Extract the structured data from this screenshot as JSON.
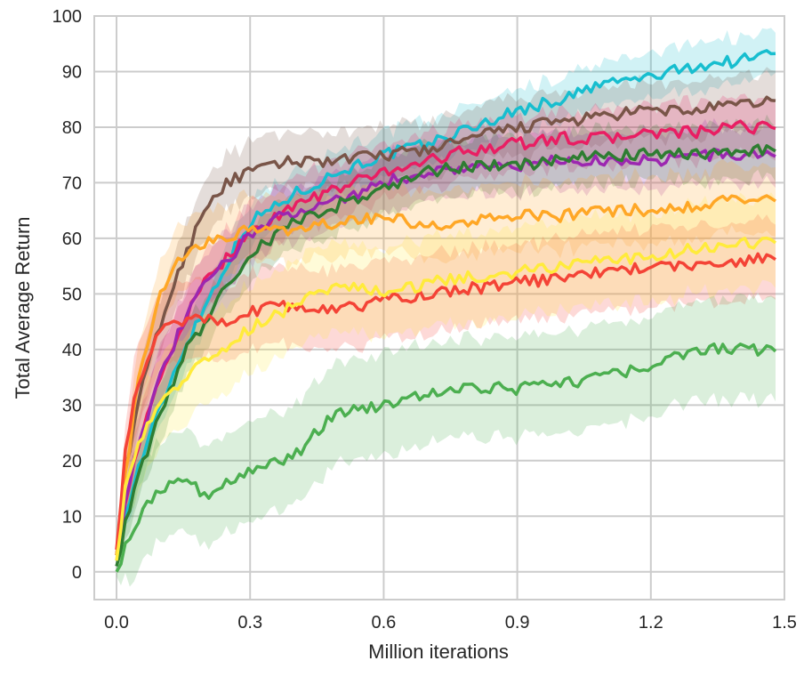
{
  "chart_data": {
    "type": "line",
    "title": "",
    "xlabel": "Million iterations",
    "ylabel": "Total Average Return",
    "xlim": [
      -0.05,
      1.5
    ],
    "ylim": [
      -5,
      100
    ],
    "xticks": [
      "0.0",
      "0.3",
      "0.6",
      "0.9",
      "1.2",
      "1.5"
    ],
    "xtick_values": [
      0.0,
      0.3,
      0.6,
      0.9,
      1.2,
      1.5
    ],
    "yticks": [
      "0",
      "10",
      "20",
      "30",
      "40",
      "50",
      "60",
      "70",
      "80",
      "90",
      "100"
    ],
    "ytick_values": [
      0,
      10,
      20,
      30,
      40,
      50,
      60,
      70,
      80,
      90,
      100
    ],
    "grid": true,
    "legend": "none",
    "x": [
      0.0,
      0.02,
      0.05,
      0.1,
      0.15,
      0.2,
      0.25,
      0.3,
      0.4,
      0.5,
      0.6,
      0.7,
      0.8,
      0.9,
      1.0,
      1.1,
      1.2,
      1.3,
      1.4,
      1.48
    ],
    "series": [
      {
        "color": "#17becf",
        "band": 4,
        "values": [
          2,
          10,
          19,
          30,
          40,
          48,
          56,
          63,
          68,
          72,
          75,
          77,
          80,
          83,
          85,
          88,
          89,
          91,
          92,
          93.5
        ]
      },
      {
        "color": "#795548",
        "band": 5,
        "values": [
          3,
          18,
          31,
          45,
          56,
          66,
          70,
          72,
          74,
          74,
          75,
          76,
          78,
          80,
          81,
          82,
          83,
          83,
          84,
          85
        ]
      },
      {
        "color": "#e91e63",
        "band": 5,
        "values": [
          4,
          13,
          23,
          35,
          45,
          52,
          57,
          61,
          66,
          69,
          72,
          74,
          76,
          77,
          78,
          78,
          79,
          79,
          80,
          80
        ]
      },
      {
        "color": "#9c27b0",
        "band": 5,
        "values": [
          3,
          13,
          24,
          35,
          45,
          52,
          56,
          61,
          65,
          67,
          70,
          72,
          73,
          73,
          74,
          74,
          74,
          75,
          75,
          75
        ]
      },
      {
        "color": "#2e7d32",
        "band": 5,
        "values": [
          1,
          9,
          17,
          29,
          39,
          45,
          52,
          57,
          63,
          66,
          69,
          72,
          73,
          73,
          74,
          75,
          75,
          75,
          76,
          76
        ]
      },
      {
        "color": "#ffa726",
        "band": 6,
        "values": [
          3,
          17,
          35,
          50,
          57,
          59,
          60,
          62,
          61,
          63,
          64,
          62,
          63,
          64,
          64,
          65,
          65,
          66,
          67,
          67
        ]
      },
      {
        "color": "#f44336",
        "band": 7,
        "values": [
          4,
          23,
          34,
          44,
          45,
          46,
          45,
          47,
          48,
          47,
          49,
          50,
          51,
          52,
          53,
          54,
          55,
          55,
          56,
          56.5
        ]
      },
      {
        "color": "#ffeb3b",
        "band": 8,
        "values": [
          2,
          16,
          24,
          30,
          35,
          38,
          41,
          44,
          48,
          52,
          50,
          52,
          53,
          54,
          55,
          56,
          57,
          58,
          59,
          59.5
        ]
      },
      {
        "color": "#4caf50",
        "band": 9,
        "values": [
          0,
          5,
          10,
          15,
          17,
          14,
          16,
          18,
          21,
          29,
          30,
          32,
          33,
          33,
          34,
          35,
          37,
          40,
          40,
          40
        ]
      }
    ]
  }
}
